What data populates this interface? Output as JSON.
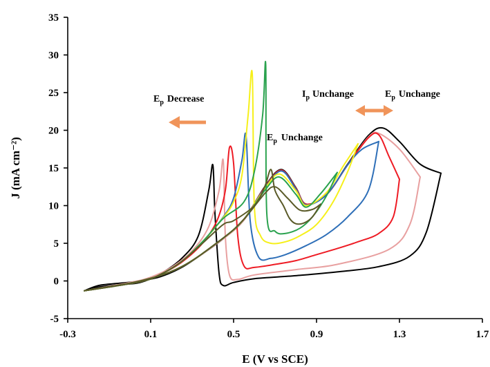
{
  "chart_data": {
    "type": "line",
    "xlabel": "E (V vs SCE)",
    "ylabel": "J (mA cm⁻²)",
    "xlim": [
      -0.3,
      1.7
    ],
    "ylim": [
      -5,
      35
    ],
    "x_ticks": [
      "-0.3",
      "0.1",
      "0.5",
      "0.9",
      "1.3",
      "1.7"
    ],
    "y_ticks": [
      "-5",
      "0",
      "5",
      "10",
      "15",
      "20",
      "25",
      "30",
      "35"
    ],
    "grid": false,
    "series": [
      {
        "color": "#000000",
        "peak_potential": 1.5,
        "forward": [
          [
            -0.22,
            -1.3
          ],
          [
            -0.15,
            -0.6
          ],
          [
            -0.05,
            -0.3
          ],
          [
            0.05,
            0
          ],
          [
            0.15,
            0.6
          ],
          [
            0.25,
            1.8
          ],
          [
            0.35,
            3.6
          ],
          [
            0.45,
            5.6
          ],
          [
            0.55,
            8.1
          ],
          [
            0.65,
            12.5
          ],
          [
            0.73,
            14.8
          ],
          [
            0.8,
            12.4
          ],
          [
            0.85,
            10.2
          ],
          [
            0.95,
            11.5
          ],
          [
            1.05,
            15.5
          ],
          [
            1.15,
            19.3
          ],
          [
            1.22,
            20.3
          ],
          [
            1.3,
            18.5
          ],
          [
            1.4,
            15.5
          ],
          [
            1.5,
            14.3
          ]
        ],
        "reverse": [
          [
            1.5,
            14.3
          ],
          [
            1.43,
            6.5
          ],
          [
            1.35,
            3.3
          ],
          [
            1.2,
            1.9
          ],
          [
            1.0,
            1.2
          ],
          [
            0.8,
            0.7
          ],
          [
            0.6,
            0.3
          ],
          [
            0.5,
            -0.2
          ],
          [
            0.45,
            -0.6
          ],
          [
            0.43,
            1
          ],
          [
            0.41,
            9
          ],
          [
            0.4,
            15.4
          ],
          [
            0.38,
            12
          ],
          [
            0.33,
            6
          ],
          [
            0.25,
            3
          ],
          [
            0.15,
            1
          ],
          [
            0.05,
            -0.2
          ],
          [
            -0.05,
            -0.5
          ],
          [
            -0.15,
            -0.8
          ],
          [
            -0.22,
            -1.3
          ]
        ]
      },
      {
        "color": "#e8a0a0",
        "peak_potential": 1.4,
        "forward": [
          [
            -0.22,
            -1.3
          ],
          [
            0.05,
            0
          ],
          [
            0.25,
            1.9
          ],
          [
            0.45,
            5.6
          ],
          [
            0.55,
            8.1
          ],
          [
            0.65,
            12.4
          ],
          [
            0.73,
            14.7
          ],
          [
            0.8,
            12.3
          ],
          [
            0.85,
            10.2
          ],
          [
            0.95,
            11.5
          ],
          [
            1.05,
            15.4
          ],
          [
            1.15,
            19.1
          ],
          [
            1.2,
            19.6
          ],
          [
            1.3,
            17.5
          ],
          [
            1.4,
            13.8
          ]
        ],
        "reverse": [
          [
            1.4,
            13.8
          ],
          [
            1.35,
            7.5
          ],
          [
            1.25,
            4.2
          ],
          [
            1.0,
            2.2
          ],
          [
            0.8,
            1.5
          ],
          [
            0.6,
            0.8
          ],
          [
            0.52,
            0.2
          ],
          [
            0.48,
            0.8
          ],
          [
            0.46,
            6
          ],
          [
            0.45,
            16
          ],
          [
            0.43,
            12
          ],
          [
            0.38,
            7.2
          ],
          [
            0.3,
            4
          ],
          [
            0.2,
            1.8
          ],
          [
            0.1,
            0.5
          ],
          [
            0,
            -0.2
          ],
          [
            -0.22,
            -1.3
          ]
        ]
      },
      {
        "color": "#ee1b24",
        "peak_potential": 1.3,
        "forward": [
          [
            -0.22,
            -1.3
          ],
          [
            0.05,
            0
          ],
          [
            0.25,
            1.9
          ],
          [
            0.45,
            5.7
          ],
          [
            0.55,
            8.2
          ],
          [
            0.65,
            12.4
          ],
          [
            0.73,
            14.7
          ],
          [
            0.8,
            12.3
          ],
          [
            0.85,
            10.2
          ],
          [
            0.95,
            11.5
          ],
          [
            1.05,
            15.4
          ],
          [
            1.15,
            19
          ],
          [
            1.2,
            19.4
          ],
          [
            1.25,
            16.5
          ],
          [
            1.3,
            13.5
          ]
        ],
        "reverse": [
          [
            1.3,
            13.5
          ],
          [
            1.27,
            8.5
          ],
          [
            1.2,
            6.3
          ],
          [
            1.1,
            5.2
          ],
          [
            1.0,
            4.3
          ],
          [
            0.9,
            3.5
          ],
          [
            0.8,
            2.7
          ],
          [
            0.7,
            2.2
          ],
          [
            0.6,
            1.8
          ],
          [
            0.55,
            2
          ],
          [
            0.52,
            6
          ],
          [
            0.5,
            15.6
          ],
          [
            0.48,
            17.7
          ],
          [
            0.46,
            12
          ],
          [
            0.42,
            8
          ],
          [
            0.35,
            5
          ],
          [
            0.25,
            2.5
          ],
          [
            0.15,
            0.9
          ],
          [
            0.05,
            -0.1
          ],
          [
            -0.22,
            -1.3
          ]
        ]
      },
      {
        "color": "#2e6fb8",
        "peak_potential": 1.2,
        "forward": [
          [
            -0.22,
            -1.3
          ],
          [
            0.05,
            0
          ],
          [
            0.25,
            1.9
          ],
          [
            0.45,
            5.7
          ],
          [
            0.55,
            8.2
          ],
          [
            0.65,
            12.3
          ],
          [
            0.73,
            14.6
          ],
          [
            0.8,
            12.2
          ],
          [
            0.85,
            10.1
          ],
          [
            0.95,
            11.5
          ],
          [
            1.05,
            15.4
          ],
          [
            1.12,
            17.5
          ],
          [
            1.2,
            18.5
          ]
        ],
        "reverse": [
          [
            1.2,
            18.5
          ],
          [
            1.15,
            12
          ],
          [
            1.05,
            8.5
          ],
          [
            0.95,
            6.2
          ],
          [
            0.85,
            4.7
          ],
          [
            0.75,
            3.5
          ],
          [
            0.68,
            3
          ],
          [
            0.62,
            3.2
          ],
          [
            0.58,
            8
          ],
          [
            0.56,
            19.3
          ],
          [
            0.54,
            16
          ],
          [
            0.5,
            11
          ],
          [
            0.45,
            8.5
          ],
          [
            0.35,
            5.2
          ],
          [
            0.25,
            2.6
          ],
          [
            0.15,
            0.9
          ],
          [
            0.05,
            -0.1
          ],
          [
            -0.22,
            -1.3
          ]
        ]
      },
      {
        "color": "#f6f01a",
        "peak_potential": 1.1,
        "forward": [
          [
            -0.22,
            -1.3
          ],
          [
            0.05,
            0
          ],
          [
            0.25,
            1.9
          ],
          [
            0.45,
            5.7
          ],
          [
            0.55,
            8.2
          ],
          [
            0.65,
            12.2
          ],
          [
            0.72,
            14.2
          ],
          [
            0.8,
            12
          ],
          [
            0.85,
            10
          ],
          [
            0.95,
            11.8
          ],
          [
            1.03,
            15.3
          ],
          [
            1.1,
            18.2
          ]
        ],
        "reverse": [
          [
            1.1,
            18.2
          ],
          [
            1.05,
            14.5
          ],
          [
            0.98,
            10.5
          ],
          [
            0.9,
            7.5
          ],
          [
            0.82,
            6
          ],
          [
            0.75,
            5.2
          ],
          [
            0.68,
            5
          ],
          [
            0.63,
            6
          ],
          [
            0.6,
            10
          ],
          [
            0.59,
            27.5
          ],
          [
            0.57,
            22
          ],
          [
            0.54,
            14
          ],
          [
            0.5,
            10.5
          ],
          [
            0.45,
            8.4
          ],
          [
            0.35,
            5.2
          ],
          [
            0.25,
            2.6
          ],
          [
            0.15,
            0.9
          ],
          [
            0.05,
            -0.1
          ],
          [
            -0.22,
            -1.3
          ]
        ]
      },
      {
        "color": "#2aa24e",
        "peak_potential": 1.0,
        "forward": [
          [
            -0.22,
            -1.3
          ],
          [
            0.05,
            0
          ],
          [
            0.25,
            1.9
          ],
          [
            0.45,
            5.7
          ],
          [
            0.55,
            8.2
          ],
          [
            0.65,
            12
          ],
          [
            0.72,
            13.8
          ],
          [
            0.8,
            11.5
          ],
          [
            0.85,
            9.8
          ],
          [
            0.92,
            11.6
          ],
          [
            1.0,
            14.4
          ]
        ],
        "reverse": [
          [
            1.0,
            14.4
          ],
          [
            0.95,
            11.4
          ],
          [
            0.88,
            8.5
          ],
          [
            0.82,
            7
          ],
          [
            0.75,
            6.3
          ],
          [
            0.7,
            6.6
          ],
          [
            0.66,
            9
          ],
          [
            0.655,
            28.7
          ],
          [
            0.64,
            22
          ],
          [
            0.6,
            14.5
          ],
          [
            0.55,
            10.5
          ],
          [
            0.45,
            8.3
          ],
          [
            0.35,
            5.2
          ],
          [
            0.25,
            2.6
          ],
          [
            0.15,
            0.9
          ],
          [
            0.05,
            -0.1
          ],
          [
            -0.22,
            -1.3
          ]
        ]
      },
      {
        "color": "#5a5a28",
        "peak_potential": 0.92,
        "forward": [
          [
            -0.22,
            -1.3
          ],
          [
            0.05,
            0
          ],
          [
            0.25,
            1.9
          ],
          [
            0.45,
            5.7
          ],
          [
            0.55,
            8.2
          ],
          [
            0.65,
            11.6
          ],
          [
            0.7,
            12.5
          ],
          [
            0.76,
            11
          ],
          [
            0.82,
            9.4
          ],
          [
            0.88,
            9.5
          ],
          [
            0.92,
            10.2
          ]
        ],
        "reverse": [
          [
            0.92,
            10.2
          ],
          [
            0.88,
            8.5
          ],
          [
            0.84,
            7.7
          ],
          [
            0.8,
            7.6
          ],
          [
            0.77,
            8.3
          ],
          [
            0.74,
            10
          ],
          [
            0.7,
            12
          ],
          [
            0.68,
            14.8
          ],
          [
            0.65,
            12.5
          ],
          [
            0.6,
            10
          ],
          [
            0.5,
            8
          ],
          [
            0.45,
            7.5
          ],
          [
            0.35,
            5
          ],
          [
            0.25,
            2.6
          ],
          [
            0.15,
            0.9
          ],
          [
            0.05,
            -0.1
          ],
          [
            -0.22,
            -1.3
          ]
        ]
      }
    ],
    "annotations": [
      {
        "main": "E",
        "sub": "p",
        "text": "Decrease"
      },
      {
        "main": "E",
        "sub": "p",
        "text": "Unchange"
      },
      {
        "main": "I",
        "sub": "p",
        "text": "Unchange"
      },
      {
        "main": "E",
        "sub": "p",
        "text": "Unchange"
      }
    ],
    "arrow_color": "#f0945a"
  }
}
